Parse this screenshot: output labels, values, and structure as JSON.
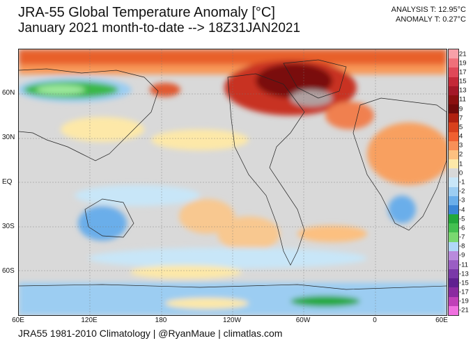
{
  "header": {
    "title": "JRA-55 Global Temperature Anomaly [°C]",
    "subtitle": "January 2021 month-to-date --> 18Z31JAN2021"
  },
  "stats": {
    "analysis": "ANALYSIS T: 12.95°C",
    "anomaly": "ANOMALY T: 0.27°C"
  },
  "map": {
    "lat_labels": [
      "60N",
      "30N",
      "EQ",
      "30S",
      "60S"
    ],
    "lon_labels": [
      "60E",
      "120E",
      "180",
      "120W",
      "60W",
      "0",
      "60E"
    ],
    "features": [
      {
        "name": "arctic-warm-band",
        "label": "Arctic warm anomaly"
      },
      {
        "name": "siberia-cold-anomaly",
        "label": "Siberia cold anomaly"
      },
      {
        "name": "canada-warm-anomaly",
        "label": "Canada/Greenland warm anomaly"
      },
      {
        "name": "antarctica-cold-anomaly",
        "label": "Antarctica cold anomaly"
      }
    ]
  },
  "colorbar": {
    "labels": [
      "21",
      "19",
      "17",
      "15",
      "13",
      "11",
      "9",
      "7",
      "5",
      "4",
      "3",
      "2",
      "1",
      "0",
      "-1",
      "-2",
      "-3",
      "-4",
      "-5",
      "-6",
      "-7",
      "-8",
      "-9",
      "-11",
      "-13",
      "-15",
      "-17",
      "-19",
      "-21"
    ],
    "colors": [
      "#f8a0a8",
      "#f0707a",
      "#e04858",
      "#c42838",
      "#a41828",
      "#8a1010",
      "#700a0a",
      "#b02010",
      "#d8401c",
      "#f06030",
      "#f89058",
      "#fcc080",
      "#fde8a8",
      "#d8d8d8",
      "#c8e6f8",
      "#9ccdf2",
      "#6aaeea",
      "#3a86d6",
      "#22a83a",
      "#44c050",
      "#7ad870",
      "#b0d8f8",
      "#b98adc",
      "#9a5ec4",
      "#7a38a8",
      "#602090",
      "#8a2aa0",
      "#c040b8",
      "#f070e0"
    ]
  },
  "footer": {
    "text": "JRA55 1981-2010 Climatology | @RyanMaue | climatlas.com"
  }
}
